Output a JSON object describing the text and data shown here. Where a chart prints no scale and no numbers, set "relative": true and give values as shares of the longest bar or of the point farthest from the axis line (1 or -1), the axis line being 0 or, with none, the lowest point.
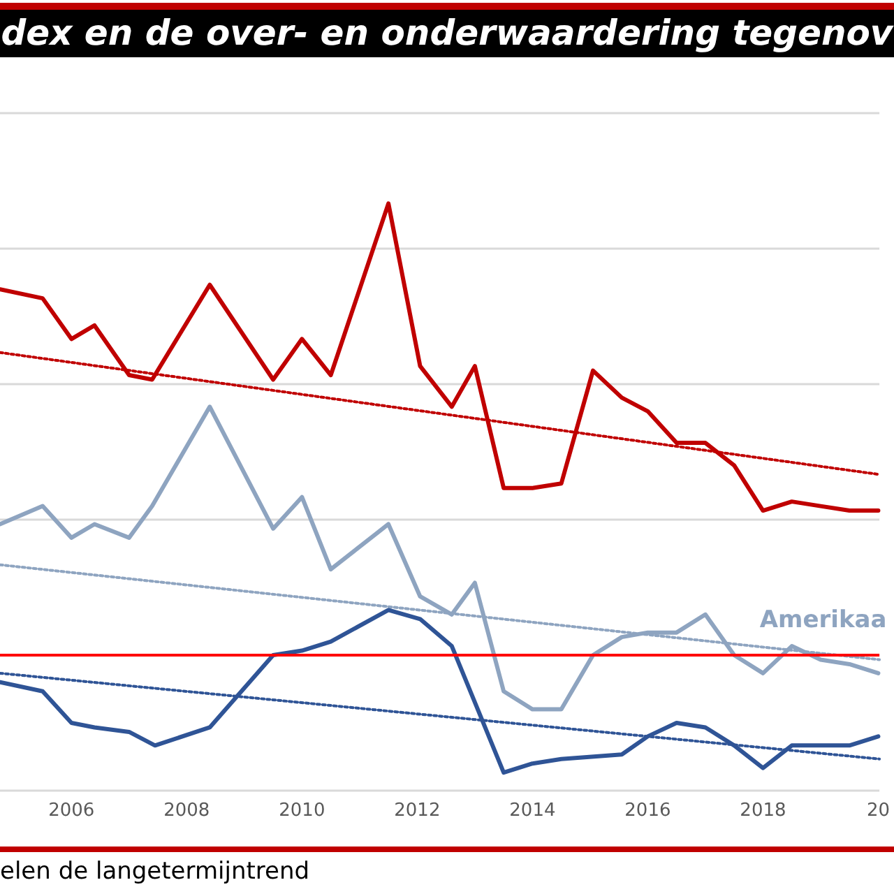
{
  "chart_data": {
    "type": "line",
    "title": "dex en de over- en onderwaardering tegenov",
    "relative": true,
    "xlim": [
      2004.76,
      2020.02
    ],
    "xticks": [
      2006,
      2008,
      2010,
      2012,
      2014,
      2016,
      2018,
      {
        "value": 2020,
        "label": "20"
      }
    ],
    "grid": "y",
    "legend": false,
    "marker": "none",
    "line_style": "solid",
    "series": [
      {
        "color": "#c00000",
        "x": [
          2004.76,
          2005.5,
          2006.0,
          2006.4,
          2007.0,
          2007.4,
          2008.4,
          2009.5,
          2010.0,
          2010.5,
          2011.5,
          2012.05,
          2012.6,
          2013.0,
          2013.5,
          2014.0,
          2014.5,
          2015.05,
          2015.55,
          2016.0,
          2016.5,
          2017.0,
          2017.5,
          2018.0,
          2018.5,
          2019.0,
          2019.5,
          2020.0
        ],
        "values": [
          0.81,
          0.79,
          0.7,
          0.73,
          0.62,
          0.61,
          0.82,
          0.61,
          0.7,
          0.62,
          1,
          0.64,
          0.55,
          0.64,
          0.37,
          0.37,
          0.38,
          0.63,
          0.57,
          0.54,
          0.47,
          0.47,
          0.42,
          0.32,
          0.34,
          0.33,
          0.32,
          0.32
        ]
      },
      {
        "name": "Amerikaa",
        "color": "#8ea4c0",
        "x": [
          2004.76,
          2005.5,
          2006.0,
          2006.4,
          2007.0,
          2007.4,
          2008.4,
          2009.5,
          2010.0,
          2010.5,
          2011.5,
          2012.05,
          2012.6,
          2013.0,
          2013.5,
          2014.0,
          2014.5,
          2015.05,
          2015.55,
          2016.0,
          2016.5,
          2017.0,
          2017.5,
          2018.0,
          2018.5,
          2019.0,
          2019.5,
          2020.0
        ],
        "values": [
          0.29,
          0.33,
          0.26,
          0.29,
          0.26,
          0.33,
          0.55,
          0.28,
          0.35,
          0.19,
          0.29,
          0.13,
          0.09,
          0.16,
          -0.08,
          -0.12,
          -0.12,
          0.0,
          0.04,
          0.05,
          0.05,
          0.09,
          0.0,
          -0.04,
          0.02,
          -0.01,
          -0.02,
          -0.04
        ]
      },
      {
        "color": "#2f5496",
        "x": [
          2004.76,
          2005.5,
          2006.0,
          2006.4,
          2007.0,
          2007.45,
          2008.4,
          2009.5,
          2010.0,
          2010.5,
          2011.5,
          2012.05,
          2012.6,
          2013.5,
          2014.0,
          2014.5,
          2015.55,
          2016.0,
          2016.5,
          2017.0,
          2017.5,
          2018.0,
          2018.5,
          2019.0,
          2019.5,
          2020.0
        ],
        "values": [
          -0.06,
          -0.08,
          -0.15,
          -0.16,
          -0.17,
          -0.2,
          -0.16,
          0.0,
          0.01,
          0.03,
          0.1,
          0.08,
          0.02,
          -0.26,
          -0.24,
          -0.23,
          -0.22,
          -0.18,
          -0.15,
          -0.16,
          -0.2,
          -0.25,
          -0.2,
          -0.2,
          -0.2,
          -0.18
        ]
      },
      {
        "type": "line",
        "line_style": "dotted",
        "color": "#c00000",
        "x": [
          2004.76,
          2020.02
        ],
        "values": [
          0.67,
          0.4
        ]
      },
      {
        "type": "line",
        "line_style": "dotted",
        "color": "#8ea4c0",
        "x": [
          2004.76,
          2020.02
        ],
        "values": [
          0.2,
          -0.01
        ]
      },
      {
        "type": "line",
        "line_style": "dotted",
        "color": "#2f5496",
        "x": [
          2004.76,
          2020.02
        ],
        "values": [
          -0.04,
          -0.23
        ]
      }
    ],
    "ref_lines": [
      {
        "axis": "y",
        "value": 0,
        "color": "#ff0000"
      }
    ],
    "annotations": [
      "elen de langetermijntrend"
    ]
  }
}
